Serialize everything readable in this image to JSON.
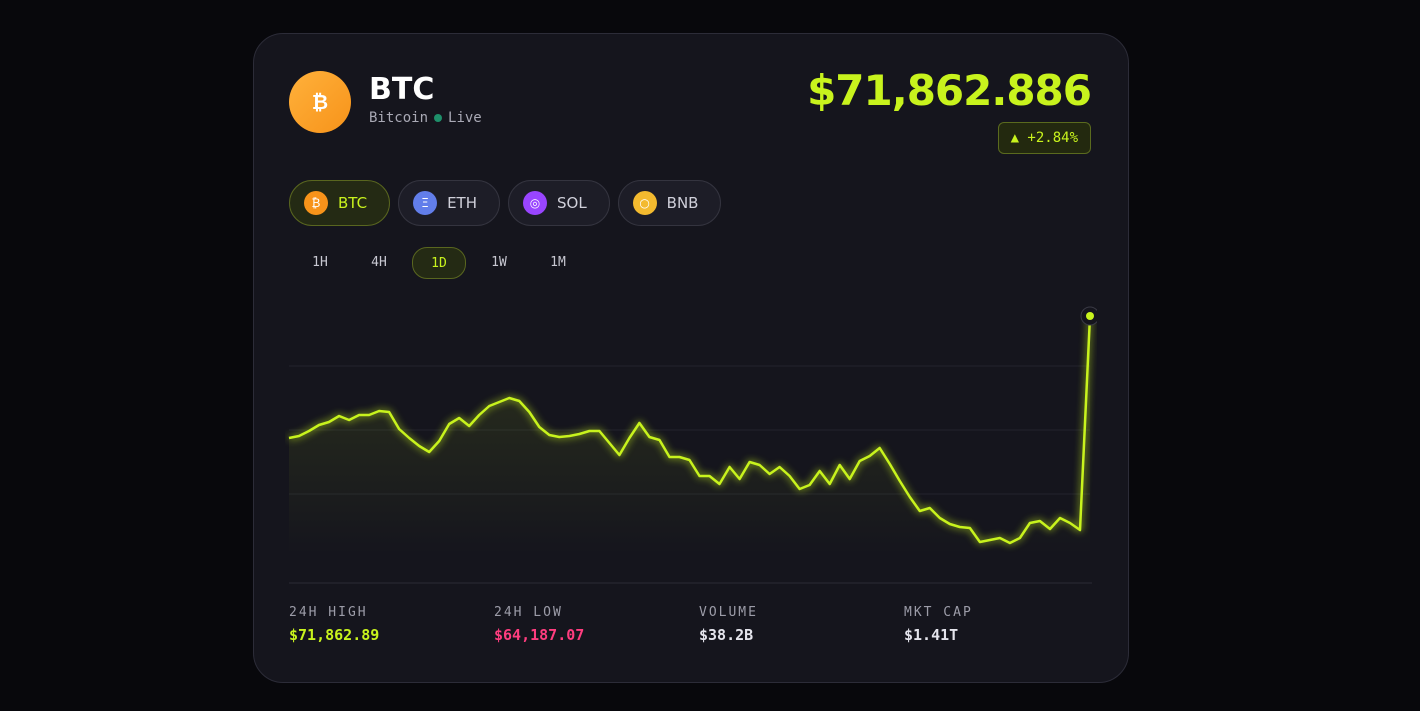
{
  "header": {
    "icon": "₿",
    "symbol": "BTC",
    "name": "Bitcoin",
    "status": "Live",
    "price": "$71,862.886",
    "change": "▲ +2.84%"
  },
  "coins": [
    {
      "icon": "₿",
      "label": "BTC"
    },
    {
      "icon": "Ξ",
      "label": "ETH"
    },
    {
      "icon": "◎",
      "label": "SOL"
    },
    {
      "icon": "○",
      "label": "BNB"
    }
  ],
  "ranges": [
    "1H",
    "4H",
    "1D",
    "1W",
    "1M"
  ],
  "chart_data": {
    "type": "line",
    "color": "#c8f31d",
    "values": [
      67738,
      67806,
      67975,
      68178,
      68279,
      68482,
      68347,
      68516,
      68516,
      68651,
      68617,
      68042,
      67738,
      67468,
      67265,
      67637,
      68212,
      68414,
      68144,
      68516,
      68820,
      68955,
      69091,
      68989,
      68617,
      68110,
      67840,
      67772,
      67806,
      67873,
      67975,
      67975,
      67569,
      67163,
      67738,
      68245,
      67772,
      67671,
      67096,
      67096,
      66994,
      66453,
      66453,
      66183,
      66758,
      66352,
      66927,
      66825,
      66521,
      66758,
      66453,
      66014,
      66149,
      66622,
      66183,
      66825,
      66352,
      66961,
      67130,
      67400,
      66859,
      66284,
      65743,
      65270,
      65371,
      65033,
      64831,
      64729,
      64695,
      64222,
      64290,
      64357,
      64187,
      64357,
      64864,
      64932,
      64661,
      65033,
      64864,
      64628,
      71863
    ]
  },
  "stats": [
    {
      "label": "24H HIGH",
      "value": "$71,862.89"
    },
    {
      "label": "24H LOW",
      "value": "$64,187.07"
    },
    {
      "label": "VOLUME",
      "value": "$38.2B"
    },
    {
      "label": "MKT CAP",
      "value": "$1.41T"
    }
  ]
}
